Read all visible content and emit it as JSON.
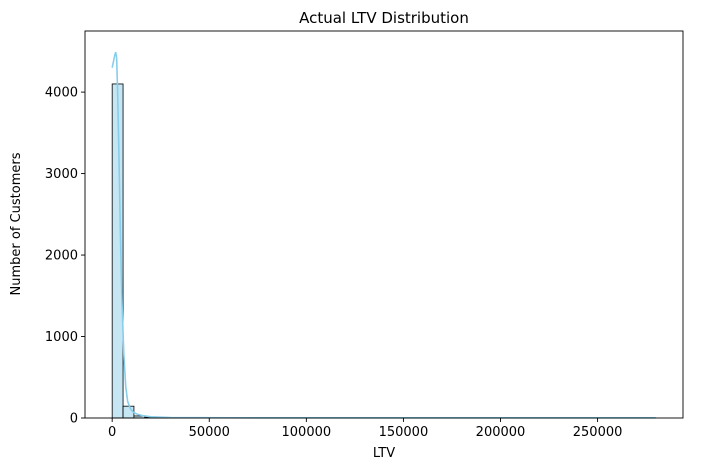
{
  "chart_data": {
    "type": "histogram",
    "title": "Actual LTV Distribution",
    "xlabel": "LTV",
    "ylabel": "Number of Customers",
    "xlim": [
      -14000,
      294000
    ],
    "ylim": [
      0,
      4750
    ],
    "xticks": [
      0,
      50000,
      100000,
      150000,
      200000,
      250000
    ],
    "xtick_labels": [
      "0",
      "50000",
      "100000",
      "150000",
      "200000",
      "250000"
    ],
    "yticks": [
      0,
      1000,
      2000,
      3000,
      4000
    ],
    "ytick_labels": [
      "0",
      "1000",
      "2000",
      "3000",
      "4000"
    ],
    "bins": [
      {
        "x0": 0,
        "x1": 5600,
        "count": 4100
      },
      {
        "x0": 5600,
        "x1": 11200,
        "count": 145
      },
      {
        "x0": 11200,
        "x1": 16800,
        "count": 25
      },
      {
        "x0": 16800,
        "x1": 22400,
        "count": 10
      },
      {
        "x0": 22400,
        "x1": 28000,
        "count": 5
      },
      {
        "x0": 28000,
        "x1": 33600,
        "count": 3
      },
      {
        "x0": 33600,
        "x1": 39200,
        "count": 2
      },
      {
        "x0": 39200,
        "x1": 44800,
        "count": 2
      },
      {
        "x0": 44800,
        "x1": 50400,
        "count": 1
      }
    ],
    "kde": [
      [
        0,
        4300
      ],
      [
        700,
        4380
      ],
      [
        1300,
        4450
      ],
      [
        1800,
        4490
      ],
      [
        2300,
        4420
      ],
      [
        2800,
        4000
      ],
      [
        3500,
        3200
      ],
      [
        4200,
        2300
      ],
      [
        5000,
        1450
      ],
      [
        6000,
        780
      ],
      [
        7000,
        380
      ],
      [
        8000,
        200
      ],
      [
        9500,
        110
      ],
      [
        11000,
        70
      ],
      [
        13000,
        45
      ],
      [
        16000,
        28
      ],
      [
        20000,
        15
      ],
      [
        30000,
        6
      ],
      [
        60000,
        3
      ],
      [
        150000,
        2
      ],
      [
        280000,
        2
      ]
    ],
    "grid": false,
    "colors": {
      "bar_fill": "#c6e6f3",
      "bar_edge": "#000000",
      "kde_line": "#87ceeb"
    }
  }
}
